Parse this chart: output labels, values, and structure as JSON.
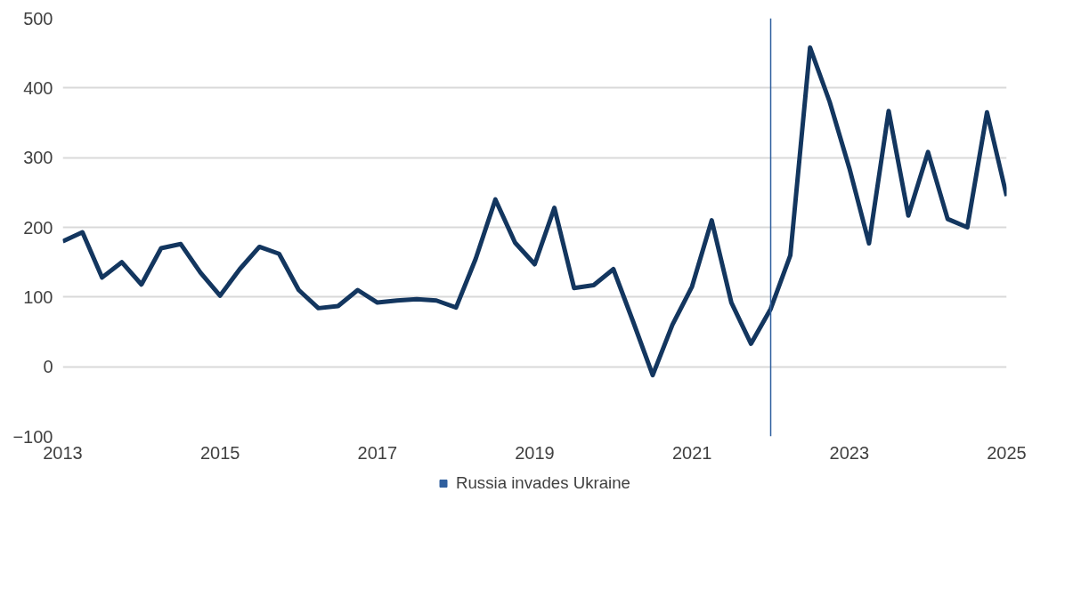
{
  "chart_data": {
    "type": "line",
    "x": [
      2013,
      2013.25,
      2013.5,
      2013.75,
      2014,
      2014.25,
      2014.5,
      2014.75,
      2015,
      2015.25,
      2015.5,
      2015.75,
      2016,
      2016.25,
      2016.5,
      2016.75,
      2017,
      2017.25,
      2017.5,
      2017.75,
      2018,
      2018.25,
      2018.5,
      2018.75,
      2019,
      2019.25,
      2019.5,
      2019.75,
      2020,
      2020.25,
      2020.5,
      2020.75,
      2021,
      2021.25,
      2021.5,
      2021.75,
      2022,
      2022.25,
      2022.5,
      2022.75,
      2023,
      2023.25,
      2023.5,
      2023.75,
      2024,
      2024.25,
      2024.5,
      2024.75,
      2025
    ],
    "series": [
      {
        "color": "#13365f",
        "values": [
          180,
          193,
          128,
          150,
          118,
          170,
          176,
          135,
          102,
          140,
          172,
          162,
          110,
          84,
          87,
          110,
          92,
          95,
          97,
          95,
          85,
          155,
          240,
          178,
          147,
          228,
          113,
          117,
          140,
          65,
          -12,
          60,
          115,
          210,
          92,
          33,
          83,
          160,
          458,
          380,
          285,
          177,
          367,
          217,
          308,
          212,
          200,
          365,
          245
        ]
      }
    ],
    "xlim": [
      2013,
      2025
    ],
    "xticks": [
      2013,
      2015,
      2017,
      2019,
      2021,
      2023,
      2025
    ],
    "ylim": [
      -100,
      500
    ],
    "yticks": [
      -100,
      0,
      100,
      200,
      300,
      400,
      500
    ],
    "grid": "y",
    "legend": "bottom",
    "line_style": "solid",
    "ref_lines": [
      {
        "axis": "x",
        "value": 2022,
        "label": "Russia invades Ukraine",
        "color": "#2f5f9e"
      }
    ]
  }
}
